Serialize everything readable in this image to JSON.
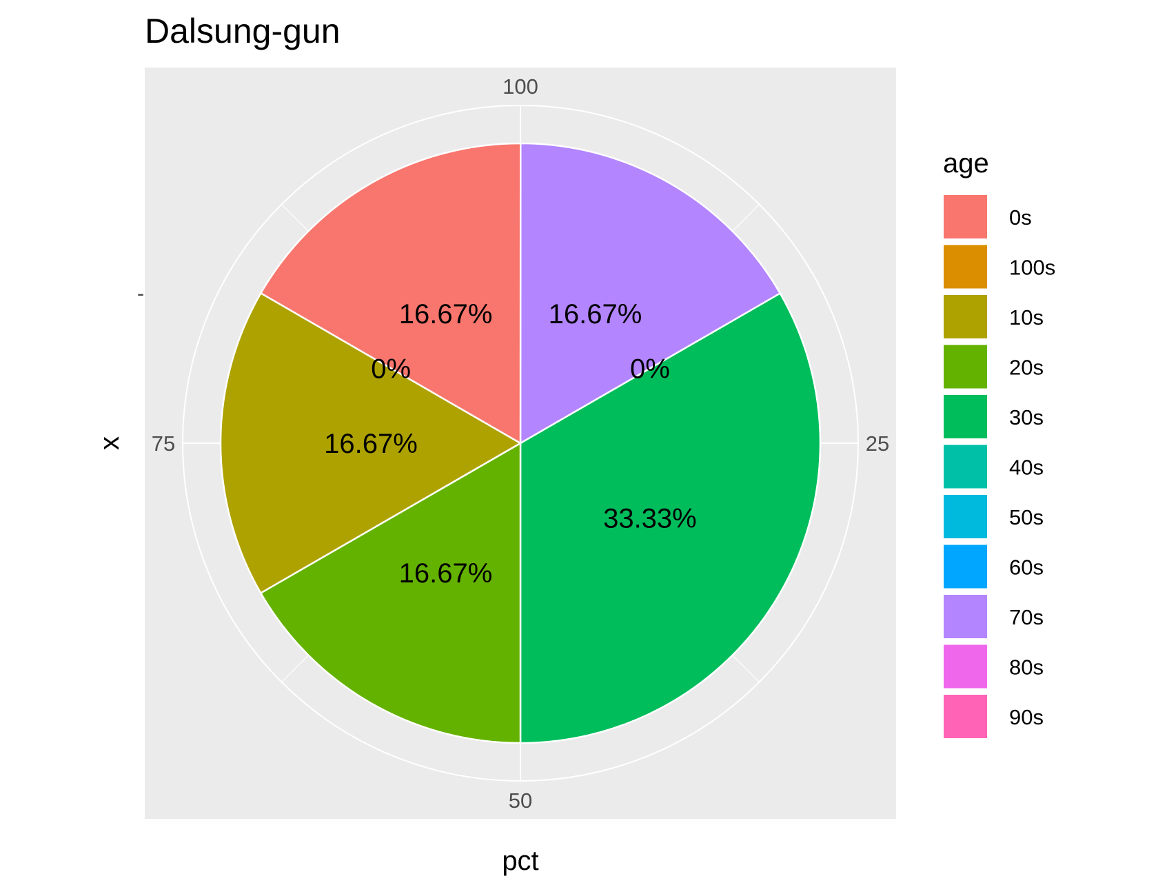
{
  "chart_data": {
    "type": "pie",
    "title": "Dalsung-gun",
    "xlabel": "pct",
    "ylabel": "x",
    "y_tick_labels": [
      "-"
    ],
    "theta_ticks": [
      {
        "value": 100,
        "label": "100"
      },
      {
        "value": 25,
        "label": "25"
      },
      {
        "value": 50,
        "label": "50"
      },
      {
        "value": 75,
        "label": "75"
      }
    ],
    "theta_range": [
      0,
      100
    ],
    "grid": true,
    "legend": {
      "title": "age",
      "placement": "right",
      "entries": [
        {
          "label": "0s",
          "color": "#F8766D"
        },
        {
          "label": "100s",
          "color": "#DB8E00"
        },
        {
          "label": "10s",
          "color": "#AEA200"
        },
        {
          "label": "20s",
          "color": "#64B200"
        },
        {
          "label": "30s",
          "color": "#00BD5C"
        },
        {
          "label": "40s",
          "color": "#00C1A7"
        },
        {
          "label": "50s",
          "color": "#00BADE"
        },
        {
          "label": "60s",
          "color": "#00A6FF"
        },
        {
          "label": "70s",
          "color": "#B385FF"
        },
        {
          "label": "80s",
          "color": "#EF67EB"
        },
        {
          "label": "90s",
          "color": "#FF63B6"
        }
      ]
    },
    "slices": [
      {
        "category": "70s",
        "value": 16.67,
        "label": "16.67%",
        "color": "#B385FF"
      },
      {
        "category": "40s",
        "value": 0,
        "label": "0%",
        "color": "#00C1A7"
      },
      {
        "category": "30s",
        "value": 33.33,
        "label": "33.33%",
        "color": "#00BD5C"
      },
      {
        "category": "20s",
        "value": 16.67,
        "label": "16.67%",
        "color": "#64B200"
      },
      {
        "category": "10s",
        "value": 16.67,
        "label": "16.67%",
        "color": "#AEA200"
      },
      {
        "category": "100s",
        "value": 0,
        "label": "0%",
        "color": "#DB8E00"
      },
      {
        "category": "0s",
        "value": 16.67,
        "label": "16.67%",
        "color": "#F8766D"
      }
    ],
    "colors": {
      "panel_background": "#EBEBEB",
      "grid": "#FFFFFF",
      "tick_text": "#4D4D4D"
    }
  }
}
